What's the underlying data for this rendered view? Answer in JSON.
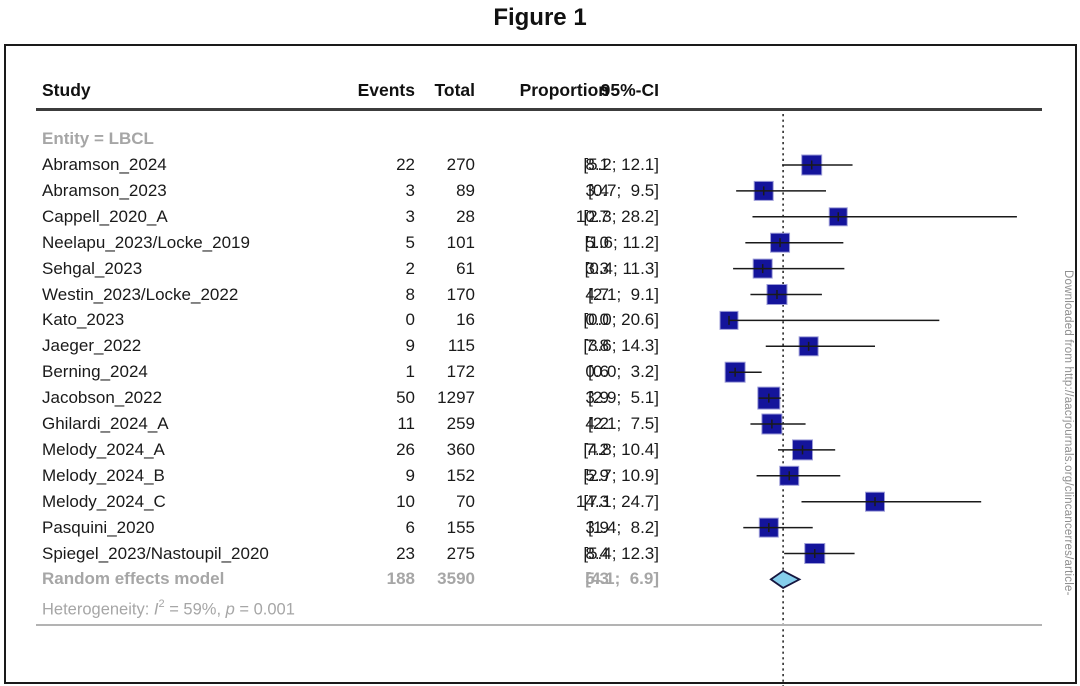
{
  "figure_title": "Figure 1",
  "columns": {
    "study": "Study",
    "events": "Events",
    "total": "Total",
    "proportion": "Proportion",
    "ci": "95%-CI"
  },
  "watermark": "Downloaded from http://aacrjournals.org/clincancerres/article-",
  "colors": {
    "square_fill": "#14149B",
    "square_edge": "#9d9dd8",
    "ci_line": "#1a1a1a",
    "reference_line": "#2b2b2b",
    "diamond_fill": "#85CEEC",
    "diamond_edge": "#16163f",
    "gray_text": "#a6a6a6"
  },
  "chart_data": {
    "type": "scatter",
    "subtype": "forest-plot",
    "title": "Figure 1",
    "group_label": "Entity = LBCL",
    "effect_measure": "Proportion (%) with 95% CI",
    "x_axis": {
      "min": 0,
      "max": 28.2,
      "reference_line_at": 5.3,
      "axis_labels_visible": false
    },
    "legend": "none",
    "studies": [
      {
        "name": "Abramson_2024",
        "events": 22,
        "total": 270,
        "proportion": "8.1",
        "ci_text": "[5.2; 12.1]",
        "est": 8.1,
        "lo": 5.2,
        "hi": 12.1,
        "size": 20
      },
      {
        "name": "Abramson_2023",
        "events": 3,
        "total": 89,
        "proportion": "3.4",
        "ci_text": "[0.7;  9.5]",
        "est": 3.4,
        "lo": 0.7,
        "hi": 9.5,
        "size": 19
      },
      {
        "name": "Cappell_2020_A",
        "events": 3,
        "total": 28,
        "proportion": "10.7",
        "ci_text": "[2.3; 28.2]",
        "est": 10.7,
        "lo": 2.3,
        "hi": 28.2,
        "size": 18
      },
      {
        "name": "Neelapu_2023/Locke_2019",
        "events": 5,
        "total": 101,
        "proportion": "5.0",
        "ci_text": "[1.6; 11.2]",
        "est": 5.0,
        "lo": 1.6,
        "hi": 11.2,
        "size": 19
      },
      {
        "name": "Sehgal_2023",
        "events": 2,
        "total": 61,
        "proportion": "3.3",
        "ci_text": "[0.4; 11.3]",
        "est": 3.3,
        "lo": 0.4,
        "hi": 11.3,
        "size": 19
      },
      {
        "name": "Westin_2023/Locke_2022",
        "events": 8,
        "total": 170,
        "proportion": "4.7",
        "ci_text": "[2.1;  9.1]",
        "est": 4.7,
        "lo": 2.1,
        "hi": 9.1,
        "size": 20
      },
      {
        "name": "Kato_2023",
        "events": 0,
        "total": 16,
        "proportion": "0.0",
        "ci_text": "[0.0; 20.6]",
        "est": 0.0,
        "lo": 0.0,
        "hi": 20.6,
        "size": 18
      },
      {
        "name": "Jaeger_2022",
        "events": 9,
        "total": 115,
        "proportion": "7.8",
        "ci_text": "[3.6; 14.3]",
        "est": 7.8,
        "lo": 3.6,
        "hi": 14.3,
        "size": 19
      },
      {
        "name": "Berning_2024",
        "events": 1,
        "total": 172,
        "proportion": "0.6",
        "ci_text": "[0.0;  3.2]",
        "est": 0.6,
        "lo": 0.0,
        "hi": 3.2,
        "size": 20
      },
      {
        "name": "Jacobson_2022",
        "events": 50,
        "total": 1297,
        "proportion": "3.9",
        "ci_text": "[2.9;  5.1]",
        "est": 3.9,
        "lo": 2.9,
        "hi": 5.1,
        "size": 22
      },
      {
        "name": "Ghilardi_2024_A",
        "events": 11,
        "total": 259,
        "proportion": "4.2",
        "ci_text": "[2.1;  7.5]",
        "est": 4.2,
        "lo": 2.1,
        "hi": 7.5,
        "size": 20
      },
      {
        "name": "Melody_2024_A",
        "events": 26,
        "total": 360,
        "proportion": "7.2",
        "ci_text": "[4.8; 10.4]",
        "est": 7.2,
        "lo": 4.8,
        "hi": 10.4,
        "size": 20
      },
      {
        "name": "Melody_2024_B",
        "events": 9,
        "total": 152,
        "proportion": "5.9",
        "ci_text": "[2.7; 10.9]",
        "est": 5.9,
        "lo": 2.7,
        "hi": 10.9,
        "size": 19
      },
      {
        "name": "Melody_2024_C",
        "events": 10,
        "total": 70,
        "proportion": "14.3",
        "ci_text": "[7.1; 24.7]",
        "est": 14.3,
        "lo": 7.1,
        "hi": 24.7,
        "size": 19
      },
      {
        "name": "Pasquini_2020",
        "events": 6,
        "total": 155,
        "proportion": "3.9",
        "ci_text": "[1.4;  8.2]",
        "est": 3.9,
        "lo": 1.4,
        "hi": 8.2,
        "size": 19
      },
      {
        "name": "Spiegel_2023/Nastoupil_2020",
        "events": 23,
        "total": 275,
        "proportion": "8.4",
        "ci_text": "[5.4; 12.3]",
        "est": 8.4,
        "lo": 5.4,
        "hi": 12.3,
        "size": 20
      }
    ],
    "summary": {
      "name": "Random effects model",
      "events": 188,
      "total": 3590,
      "proportion": "5.3",
      "ci_text": "[4.1;  6.9]",
      "est": 5.3,
      "lo": 4.1,
      "hi": 6.9
    },
    "heterogeneity": {
      "prefix": "Heterogeneity: ",
      "i_label": "I",
      "i_sup": "2",
      "mid": " = 59%, ",
      "p_label": "p",
      "suffix": " = 0.001"
    }
  }
}
